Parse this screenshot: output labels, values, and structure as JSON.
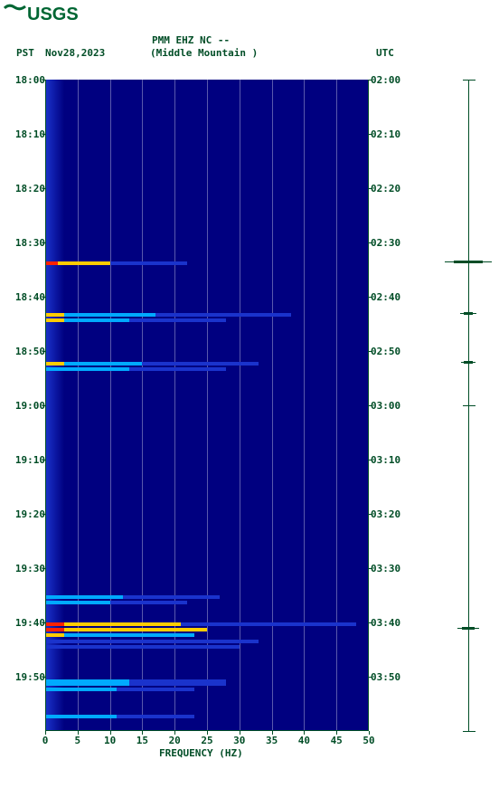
{
  "logo_text": "USGS",
  "logo_color": "#006633",
  "header": {
    "station_id": "PMM EHZ NC --",
    "station_name": "(Middle Mountain )",
    "left_tz": "PST",
    "date": "Nov28,2023",
    "right_tz": "UTC"
  },
  "spectrogram": {
    "type": "spectrogram",
    "background_color": "#000080",
    "xlim": [
      0,
      50
    ],
    "xtick_step": 5,
    "xlabel": "FREQUENCY (HZ)",
    "time_axis": {
      "left_start": "18:00",
      "right_start": "02:00",
      "minutes_span": 120,
      "tick_step_minutes": 10,
      "left_ticks": [
        "18:00",
        "18:10",
        "18:20",
        "18:30",
        "18:40",
        "18:50",
        "19:00",
        "19:10",
        "19:20",
        "19:30",
        "19:40",
        "19:50"
      ],
      "right_ticks": [
        "02:00",
        "02:10",
        "02:20",
        "02:30",
        "02:40",
        "02:50",
        "03:00",
        "03:10",
        "03:20",
        "03:30",
        "03:40",
        "03:50"
      ]
    },
    "gridline_color": "#ffffff",
    "gridline_opacity": 0.35,
    "colormap": [
      "#000080",
      "#0022cc",
      "#0088ff",
      "#00ddcc",
      "#aaff00",
      "#ffcc00",
      "#ff2200"
    ],
    "events": [
      {
        "minute": 33.5,
        "freq_peak": 2,
        "freq_extent": 8,
        "intensity": "high"
      },
      {
        "minute": 43,
        "freq_peak": 3,
        "freq_extent": 14,
        "intensity": "medium"
      },
      {
        "minute": 44,
        "freq_peak": 3,
        "freq_extent": 10,
        "intensity": "medium"
      },
      {
        "minute": 52,
        "freq_peak": 3,
        "freq_extent": 12,
        "intensity": "medium"
      },
      {
        "minute": 53,
        "freq_peak": 3,
        "freq_extent": 10,
        "intensity": "low"
      },
      {
        "minute": 95,
        "freq_peak": 2,
        "freq_extent": 10,
        "intensity": "low"
      },
      {
        "minute": 96,
        "freq_peak": 2,
        "freq_extent": 8,
        "intensity": "low"
      },
      {
        "minute": 100,
        "freq_peak": 3,
        "freq_extent": 18,
        "intensity": "high"
      },
      {
        "minute": 101,
        "freq_peak": 3,
        "freq_extent": 22,
        "intensity": "high"
      },
      {
        "minute": 102,
        "freq_peak": 3,
        "freq_extent": 20,
        "intensity": "medium"
      },
      {
        "minute": 110.5,
        "freq_peak": 3,
        "freq_extent": 10,
        "intensity": "low"
      },
      {
        "minute": 111,
        "freq_peak": 3,
        "freq_extent": 10,
        "intensity": "low"
      },
      {
        "minute": 112,
        "freq_peak": 3,
        "freq_extent": 8,
        "intensity": "low"
      },
      {
        "minute": 117,
        "freq_peak": 3,
        "freq_extent": 8,
        "intensity": "low"
      }
    ],
    "noise_band": {
      "freq_lo": 0,
      "freq_hi": 3,
      "color": "#1a33cc"
    }
  },
  "helicorder": {
    "axis_color": "#004d26",
    "tick_step_minutes": 60,
    "spikes": [
      {
        "minute": 33.5,
        "amp": 1.0
      },
      {
        "minute": 43,
        "amp": 0.35
      },
      {
        "minute": 52,
        "amp": 0.3
      },
      {
        "minute": 101,
        "amp": 0.45
      }
    ]
  },
  "text_color": "#004d26",
  "font_family": "monospace",
  "font_size_pt": 9
}
